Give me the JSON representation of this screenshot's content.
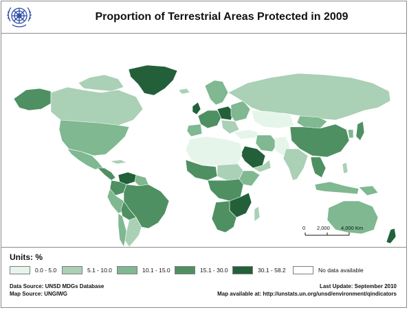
{
  "title": "Proportion of Terrestrial Areas Protected in 2009",
  "legend": {
    "units_label": "Units: %",
    "classes": [
      {
        "label": "0.0 - 5.0",
        "color": "#e5f5ea"
      },
      {
        "label": "5.1 - 10.0",
        "color": "#aad0b6"
      },
      {
        "label": "10.1 - 15.0",
        "color": "#7fb891"
      },
      {
        "label": "15.1 - 30.0",
        "color": "#4e9062"
      },
      {
        "label": "30.1 - 58.2",
        "color": "#23603a"
      },
      {
        "label": "No data available",
        "color": "#ffffff"
      }
    ]
  },
  "scale_bar": {
    "labels": [
      "0",
      "2,000",
      "4,000 Km"
    ]
  },
  "footer": {
    "data_source": "Data Source: UNSD MDGs Database",
    "map_source": "Map Source: UNGIWG",
    "last_update": "Last Update: September 2010",
    "map_available": "Map available at: http://unstats.un.org/unsd/environment/qindicators"
  },
  "colors": {
    "frame": "#8a8a8a",
    "logo": "#2b4aa6",
    "ocean": "#ffffff"
  }
}
